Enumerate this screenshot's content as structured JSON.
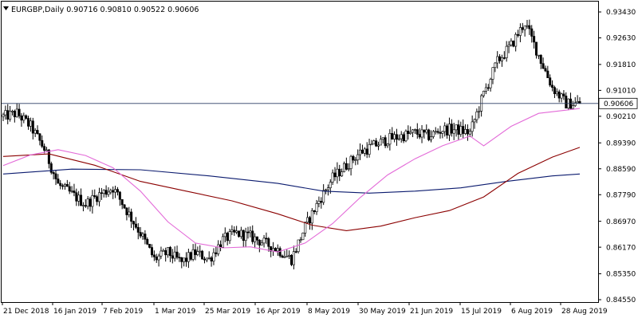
{
  "chart_data": {
    "type": "candlestick",
    "title": "EURGBP,Daily",
    "ohlc_header": [
      "0.90716",
      "0.90810",
      "0.90522",
      "0.90606"
    ],
    "current_price": 0.90606,
    "current_price_label": "0.90606",
    "x_tick_labels": [
      "21 Dec 2018",
      "16 Jan 2019",
      "7 Feb 2019",
      "1 Mar 2019",
      "25 Mar 2019",
      "16 Apr 2019",
      "8 May 2019",
      "30 May 2019",
      "21 Jun 2019",
      "15 Jul 2019",
      "6 Aug 2019",
      "28 Aug 2019"
    ],
    "y_ticks": [
      0.9343,
      0.9263,
      0.9181,
      0.9101,
      0.9021,
      0.8939,
      0.8859,
      0.8779,
      0.8697,
      0.8617,
      0.8535,
      0.8455
    ],
    "y_tick_labels": [
      "0.93430",
      "0.92630",
      "0.91810",
      "0.91010",
      "0.90210",
      "0.89390",
      "0.88590",
      "0.87790",
      "0.86970",
      "0.86170",
      "0.85350",
      "0.84550"
    ],
    "ylim": [
      0.8455,
      0.9343
    ],
    "grid": false,
    "legend": "none",
    "bull_color": "#ffffff",
    "bear_color": "#000000",
    "candle_outline": "#000000",
    "price_line_color": "#2b3c63",
    "ma_fast_color": "#e36ad8",
    "ma_mid_color": "#8b0000",
    "ma_slow_color": "#0a1a6e",
    "close_path": [
      [
        0,
        0.902
      ],
      [
        6,
        0.903
      ],
      [
        12,
        0.899
      ],
      [
        18,
        0.892
      ],
      [
        24,
        0.881
      ],
      [
        30,
        0.878
      ],
      [
        36,
        0.875
      ],
      [
        42,
        0.878
      ],
      [
        48,
        0.88
      ],
      [
        54,
        0.873
      ],
      [
        60,
        0.866
      ],
      [
        66,
        0.858
      ],
      [
        72,
        0.86
      ],
      [
        78,
        0.857
      ],
      [
        84,
        0.86
      ],
      [
        90,
        0.858
      ],
      [
        96,
        0.864
      ],
      [
        102,
        0.866
      ],
      [
        108,
        0.865
      ],
      [
        114,
        0.863
      ],
      [
        120,
        0.861
      ],
      [
        126,
        0.858
      ],
      [
        132,
        0.868
      ],
      [
        138,
        0.876
      ],
      [
        144,
        0.883
      ],
      [
        150,
        0.887
      ],
      [
        156,
        0.891
      ],
      [
        162,
        0.893
      ],
      [
        168,
        0.895
      ],
      [
        174,
        0.896
      ],
      [
        180,
        0.897
      ],
      [
        186,
        0.896
      ],
      [
        192,
        0.898
      ],
      [
        198,
        0.898
      ],
      [
        204,
        0.897
      ],
      [
        210,
        0.909
      ],
      [
        216,
        0.919
      ],
      [
        222,
        0.924
      ],
      [
        228,
        0.931
      ],
      [
        234,
        0.921
      ],
      [
        240,
        0.911
      ],
      [
        246,
        0.906
      ],
      [
        252,
        0.906
      ]
    ],
    "ma_fast": [
      [
        0,
        0.8869
      ],
      [
        12,
        0.8902
      ],
      [
        24,
        0.8918
      ],
      [
        36,
        0.89
      ],
      [
        48,
        0.8862
      ],
      [
        60,
        0.879
      ],
      [
        72,
        0.8695
      ],
      [
        84,
        0.863
      ],
      [
        96,
        0.8615
      ],
      [
        108,
        0.8618
      ],
      [
        120,
        0.8602
      ],
      [
        132,
        0.863
      ],
      [
        144,
        0.869
      ],
      [
        156,
        0.877
      ],
      [
        168,
        0.884
      ],
      [
        180,
        0.889
      ],
      [
        192,
        0.893
      ],
      [
        204,
        0.896
      ],
      [
        210,
        0.893
      ],
      [
        222,
        0.899
      ],
      [
        234,
        0.903
      ],
      [
        246,
        0.904
      ],
      [
        252,
        0.9045
      ]
    ],
    "ma_mid": [
      [
        0,
        0.8897
      ],
      [
        20,
        0.8905
      ],
      [
        40,
        0.887
      ],
      [
        60,
        0.882
      ],
      [
        80,
        0.879
      ],
      [
        100,
        0.876
      ],
      [
        120,
        0.872
      ],
      [
        135,
        0.8685
      ],
      [
        150,
        0.8668
      ],
      [
        165,
        0.8682
      ],
      [
        180,
        0.8708
      ],
      [
        195,
        0.873
      ],
      [
        210,
        0.8772
      ],
      [
        225,
        0.8845
      ],
      [
        240,
        0.8895
      ],
      [
        252,
        0.8925
      ]
    ],
    "ma_slow": [
      [
        0,
        0.8843
      ],
      [
        30,
        0.8858
      ],
      [
        60,
        0.8856
      ],
      [
        90,
        0.8837
      ],
      [
        120,
        0.8814
      ],
      [
        140,
        0.879
      ],
      [
        160,
        0.8784
      ],
      [
        180,
        0.879
      ],
      [
        200,
        0.88
      ],
      [
        220,
        0.882
      ],
      [
        240,
        0.8837
      ],
      [
        252,
        0.8843
      ]
    ],
    "num_bars": 253
  }
}
